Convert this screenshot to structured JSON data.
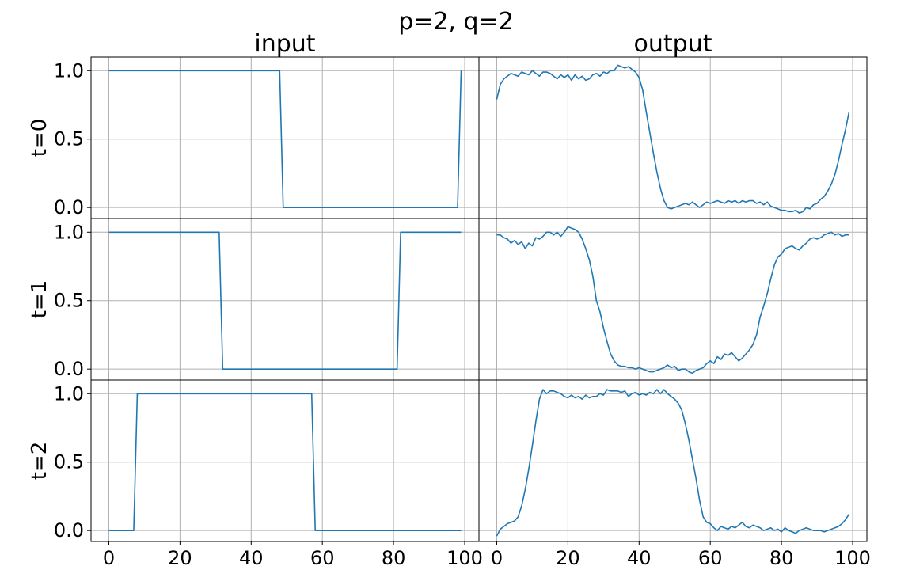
{
  "chart_data": {
    "type": "line",
    "title": "p=2, q=2",
    "column_titles": [
      "input",
      "output"
    ],
    "row_labels": [
      "t=0",
      "t=1",
      "t=2"
    ],
    "xlim": [
      -5,
      104
    ],
    "ylim": [
      -0.08,
      1.1
    ],
    "x_ticks": [
      0,
      20,
      40,
      60,
      80,
      100
    ],
    "x_tick_labels": [
      "0",
      "20",
      "40",
      "60",
      "80",
      "100"
    ],
    "y_ticks": [
      0.0,
      0.5,
      1.0
    ],
    "y_tick_labels": [
      "0.0",
      "0.5",
      "1.0"
    ],
    "grid": true,
    "line_color": "#1f77b4",
    "panels": [
      {
        "row": 0,
        "col": 0,
        "x": [
          0,
          48,
          49,
          98,
          99
        ],
        "y": [
          1,
          1,
          0,
          0,
          1
        ]
      },
      {
        "row": 0,
        "col": 1,
        "x": [
          0,
          1,
          2,
          3,
          4,
          5,
          6,
          7,
          8,
          9,
          10,
          11,
          12,
          13,
          14,
          15,
          16,
          17,
          18,
          19,
          20,
          21,
          22,
          23,
          24,
          25,
          26,
          27,
          28,
          29,
          30,
          31,
          32,
          33,
          34,
          35,
          36,
          37,
          38,
          39,
          40,
          41,
          42,
          43,
          44,
          45,
          46,
          47,
          48,
          49,
          50,
          51,
          52,
          53,
          54,
          55,
          56,
          57,
          58,
          59,
          60,
          61,
          62,
          63,
          64,
          65,
          66,
          67,
          68,
          69,
          70,
          71,
          72,
          73,
          74,
          75,
          76,
          77,
          78,
          79,
          80,
          81,
          82,
          83,
          84,
          85,
          86,
          87,
          88,
          89,
          90,
          91,
          92,
          93,
          94,
          95,
          96,
          97,
          98,
          99
        ],
        "y": [
          0.79,
          0.9,
          0.94,
          0.96,
          0.98,
          0.97,
          0.96,
          0.99,
          0.98,
          0.97,
          1.0,
          0.98,
          0.96,
          0.99,
          0.99,
          0.98,
          0.96,
          0.94,
          0.97,
          0.95,
          0.97,
          0.93,
          0.97,
          0.94,
          0.96,
          0.93,
          0.94,
          0.97,
          0.98,
          0.96,
          0.99,
          0.98,
          1.0,
          1.0,
          1.04,
          1.03,
          1.02,
          1.03,
          1.01,
          0.99,
          0.95,
          0.86,
          0.7,
          0.55,
          0.4,
          0.26,
          0.14,
          0.05,
          0.0,
          -0.01,
          0.0,
          0.01,
          0.02,
          0.03,
          0.02,
          0.04,
          0.02,
          0.0,
          0.02,
          0.04,
          0.03,
          0.04,
          0.05,
          0.04,
          0.03,
          0.05,
          0.04,
          0.05,
          0.03,
          0.05,
          0.04,
          0.05,
          0.05,
          0.03,
          0.04,
          0.02,
          0.04,
          0.01,
          0.0,
          -0.01,
          -0.02,
          -0.02,
          -0.03,
          -0.03,
          -0.02,
          -0.04,
          -0.03,
          0.0,
          -0.01,
          0.02,
          0.03,
          0.06,
          0.08,
          0.12,
          0.17,
          0.24,
          0.34,
          0.46,
          0.57,
          0.7
        ]
      },
      {
        "row": 1,
        "col": 0,
        "x": [
          0,
          31,
          32,
          81,
          82,
          99
        ],
        "y": [
          1,
          1,
          0,
          0,
          1,
          1
        ]
      },
      {
        "row": 1,
        "col": 1,
        "x": [
          0,
          1,
          2,
          3,
          4,
          5,
          6,
          7,
          8,
          9,
          10,
          11,
          12,
          13,
          14,
          15,
          16,
          17,
          18,
          19,
          20,
          21,
          22,
          23,
          24,
          25,
          26,
          27,
          28,
          29,
          30,
          31,
          32,
          33,
          34,
          35,
          36,
          37,
          38,
          39,
          40,
          41,
          42,
          43,
          44,
          45,
          46,
          47,
          48,
          49,
          50,
          51,
          52,
          53,
          54,
          55,
          56,
          57,
          58,
          59,
          60,
          61,
          62,
          63,
          64,
          65,
          66,
          67,
          68,
          69,
          70,
          71,
          72,
          73,
          74,
          75,
          76,
          77,
          78,
          79,
          80,
          81,
          82,
          83,
          84,
          85,
          86,
          87,
          88,
          89,
          90,
          91,
          92,
          93,
          94,
          95,
          96,
          97,
          98,
          99
        ],
        "y": [
          0.98,
          0.98,
          0.96,
          0.95,
          0.92,
          0.94,
          0.91,
          0.93,
          0.88,
          0.92,
          0.9,
          0.96,
          0.95,
          0.97,
          1.0,
          1.0,
          0.98,
          1.0,
          0.97,
          1.0,
          1.04,
          1.03,
          1.02,
          1.0,
          0.95,
          0.88,
          0.8,
          0.68,
          0.5,
          0.42,
          0.3,
          0.2,
          0.11,
          0.06,
          0.03,
          0.02,
          0.02,
          0.01,
          0.01,
          0.0,
          0.01,
          0.0,
          -0.01,
          -0.02,
          -0.02,
          -0.01,
          0.0,
          0.01,
          0.03,
          0.01,
          0.02,
          -0.01,
          0.0,
          0.0,
          -0.02,
          -0.03,
          -0.01,
          0.0,
          0.01,
          0.04,
          0.06,
          0.04,
          0.09,
          0.07,
          0.11,
          0.1,
          0.12,
          0.09,
          0.06,
          0.08,
          0.11,
          0.14,
          0.18,
          0.25,
          0.38,
          0.46,
          0.55,
          0.66,
          0.76,
          0.82,
          0.84,
          0.88,
          0.89,
          0.9,
          0.88,
          0.87,
          0.9,
          0.92,
          0.95,
          0.96,
          0.95,
          0.96,
          0.98,
          0.99,
          1.0,
          0.98,
          0.99,
          0.97,
          0.98,
          0.98
        ]
      },
      {
        "row": 2,
        "col": 0,
        "x": [
          0,
          7,
          8,
          57,
          58,
          99
        ],
        "y": [
          0,
          0,
          1,
          1,
          0,
          0
        ]
      },
      {
        "row": 2,
        "col": 1,
        "x": [
          0,
          1,
          2,
          3,
          4,
          5,
          6,
          7,
          8,
          9,
          10,
          11,
          12,
          13,
          14,
          15,
          16,
          17,
          18,
          19,
          20,
          21,
          22,
          23,
          24,
          25,
          26,
          27,
          28,
          29,
          30,
          31,
          32,
          33,
          34,
          35,
          36,
          37,
          38,
          39,
          40,
          41,
          42,
          43,
          44,
          45,
          46,
          47,
          48,
          49,
          50,
          51,
          52,
          53,
          54,
          55,
          56,
          57,
          58,
          59,
          60,
          61,
          62,
          63,
          64,
          65,
          66,
          67,
          68,
          69,
          70,
          71,
          72,
          73,
          74,
          75,
          76,
          77,
          78,
          79,
          80,
          81,
          82,
          83,
          84,
          85,
          86,
          87,
          88,
          89,
          90,
          91,
          92,
          93,
          94,
          95,
          96,
          97,
          98,
          99
        ],
        "y": [
          -0.04,
          0.01,
          0.03,
          0.05,
          0.06,
          0.07,
          0.1,
          0.18,
          0.3,
          0.45,
          0.62,
          0.8,
          0.96,
          1.03,
          1.0,
          1.02,
          1.02,
          1.01,
          1.0,
          0.98,
          0.97,
          0.99,
          0.97,
          0.98,
          0.96,
          0.99,
          0.97,
          0.98,
          0.98,
          1.0,
          0.99,
          1.03,
          1.02,
          1.02,
          1.02,
          1.01,
          1.02,
          0.98,
          1.0,
          1.01,
          0.99,
          1.0,
          0.99,
          1.01,
          1.0,
          1.03,
          1.0,
          1.03,
          1.0,
          0.98,
          0.96,
          0.93,
          0.88,
          0.78,
          0.66,
          0.52,
          0.38,
          0.22,
          0.1,
          0.06,
          0.05,
          0.02,
          0.0,
          0.03,
          0.02,
          0.01,
          0.03,
          0.02,
          0.04,
          0.06,
          0.03,
          0.02,
          0.04,
          0.03,
          0.02,
          0.0,
          0.01,
          0.02,
          0.0,
          0.01,
          -0.01,
          0.02,
          0.0,
          -0.01,
          -0.02,
          0.0,
          0.01,
          0.02,
          0.01,
          0.0,
          0.0,
          0.0,
          -0.01,
          0.0,
          0.01,
          0.02,
          0.03,
          0.05,
          0.08,
          0.12
        ]
      }
    ]
  }
}
